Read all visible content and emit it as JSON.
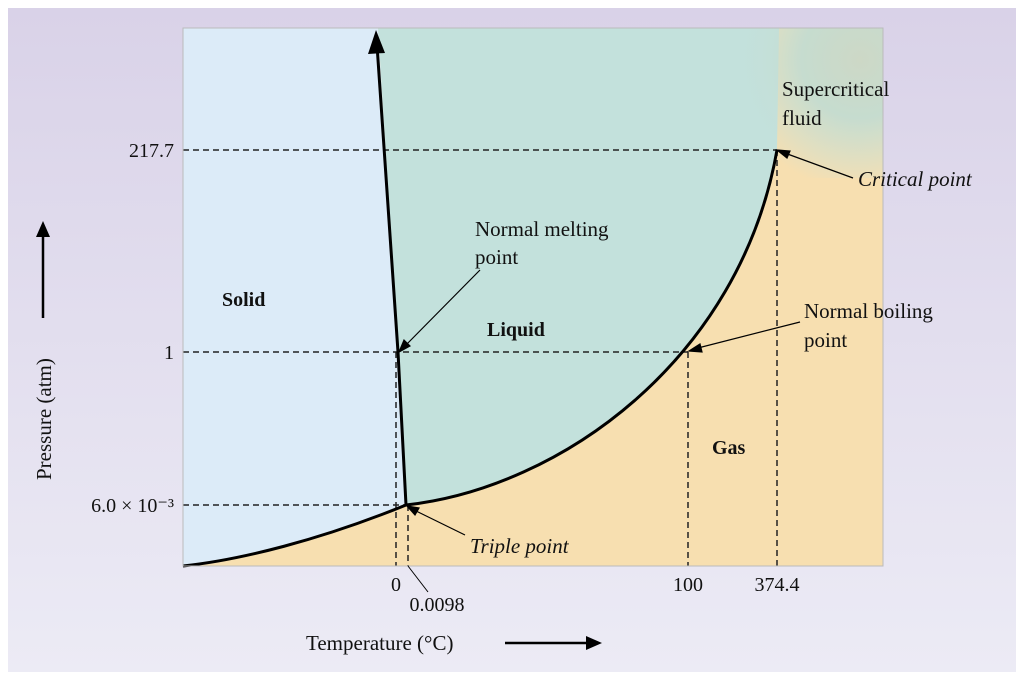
{
  "title": "",
  "axes": {
    "x_label": "Temperature (°C)",
    "y_label": "Pressure (atm)",
    "x_ticks": [
      "0",
      "0.0098",
      "100",
      "374.4"
    ],
    "y_ticks": [
      "217.7",
      "1",
      "6.0 × 10⁻³"
    ]
  },
  "regions": {
    "solid": "Solid",
    "liquid": "Liquid",
    "gas": "Gas",
    "supercritical_line1": "Supercritical",
    "supercritical_line2": "fluid"
  },
  "annotations": {
    "melting_line1": "Normal melting",
    "melting_line2": "point",
    "boiling_line1": "Normal boiling",
    "boiling_line2": "point",
    "critical": "Critical point",
    "triple": "Triple point"
  },
  "points": {
    "triple_point": {
      "temperature_c": 0.0098,
      "pressure_atm": 0.006
    },
    "normal_melting_point": {
      "temperature_c": 0,
      "pressure_atm": 1
    },
    "normal_boiling_point": {
      "temperature_c": 100,
      "pressure_atm": 1
    },
    "critical_point": {
      "temperature_c": 374.4,
      "pressure_atm": 217.7
    }
  },
  "colors": {
    "solid_region": "#dcebf8",
    "liquid_region": "#c3e1dc",
    "gas_region": "#f7dfb0",
    "frame_top": "#d9d2e8",
    "frame_bottom": "#ecebf5"
  }
}
